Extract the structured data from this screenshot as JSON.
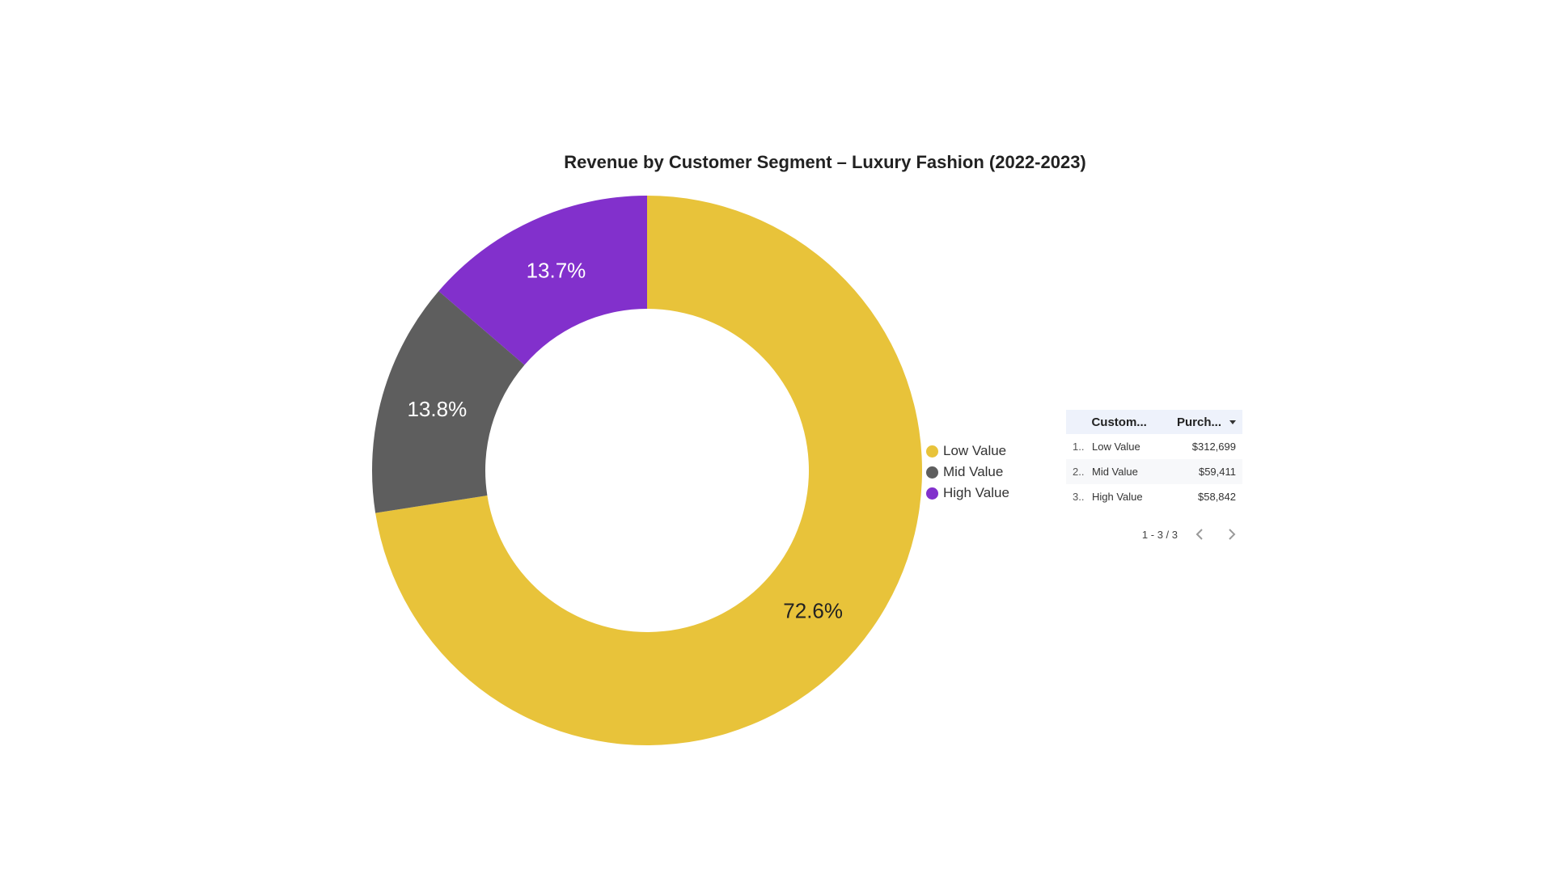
{
  "chart_data": {
    "type": "pie",
    "title": "Revenue by Customer Segment – Luxury Fashion (2022-2023)",
    "donut": true,
    "categories": [
      "Low Value",
      "Mid Value",
      "High Value"
    ],
    "values": [
      72.6,
      13.8,
      13.7
    ],
    "slice_labels": [
      "72.6%",
      "13.8%",
      "13.7%"
    ],
    "colors": [
      "#e8c33a",
      "#5e5e5e",
      "#8230cc"
    ],
    "label_colors": [
      "#222222",
      "#ffffff",
      "#ffffff"
    ],
    "legend": {
      "position": "right",
      "entries": [
        "Low Value",
        "Mid Value",
        "High Value"
      ]
    }
  },
  "table": {
    "headers": [
      "Custom...",
      "Purch..."
    ],
    "rows": [
      {
        "index": "1..",
        "name": "Low Value",
        "value": "$312,699"
      },
      {
        "index": "2..",
        "name": "Mid Value",
        "value": "$59,411"
      },
      {
        "index": "3..",
        "name": "High Value",
        "value": "$58,842"
      }
    ],
    "pagination": "1 - 3 / 3",
    "sort_icon": "sort-desc-icon",
    "prev_icon": "chevron-left-icon",
    "next_icon": "chevron-right-icon"
  }
}
